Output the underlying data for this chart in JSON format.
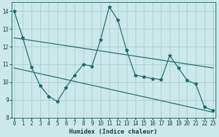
{
  "xlabel": "Humidex (Indice chaleur)",
  "background_color": "#cce8e8",
  "grid_color": "#aad0d0",
  "line_color": "#1a6b6b",
  "x_values": [
    0,
    1,
    2,
    3,
    4,
    5,
    6,
    7,
    8,
    9,
    10,
    11,
    12,
    13,
    14,
    15,
    16,
    17,
    18,
    19,
    20,
    21,
    22,
    23
  ],
  "y_data": [
    14.0,
    12.5,
    10.85,
    9.8,
    9.2,
    8.9,
    9.7,
    10.4,
    11.0,
    10.9,
    12.4,
    14.25,
    13.5,
    11.8,
    10.4,
    10.3,
    10.2,
    10.15,
    11.5,
    10.8,
    10.1,
    9.9,
    8.6,
    8.4
  ],
  "trend1_x": [
    0,
    23
  ],
  "trend1_y": [
    12.5,
    10.8
  ],
  "trend2_x": [
    0,
    23
  ],
  "trend2_y": [
    10.8,
    8.3
  ],
  "ylim_min": 8,
  "ylim_max": 14.5,
  "xlim_min": -0.3,
  "xlim_max": 23.3,
  "yticks": [
    8,
    9,
    10,
    11,
    12,
    13,
    14
  ],
  "xticks": [
    0,
    1,
    2,
    3,
    4,
    5,
    6,
    7,
    8,
    9,
    10,
    11,
    12,
    13,
    14,
    15,
    16,
    17,
    18,
    19,
    20,
    21,
    22,
    23
  ],
  "tick_labelsize": 5.5,
  "xlabel_fontsize": 6.5
}
